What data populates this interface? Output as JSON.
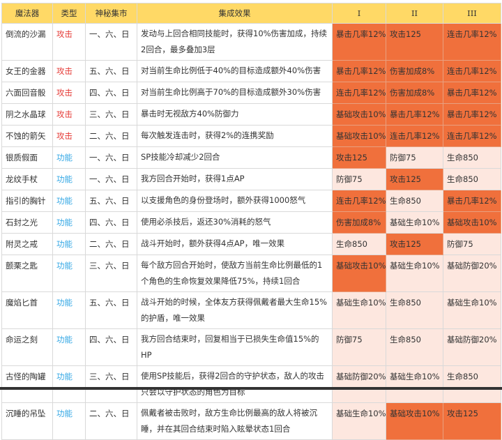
{
  "colors": {
    "header": "#FFD966",
    "highlight": "#F0703C",
    "light": "#FDE7DF",
    "attack": "#E53935",
    "function": "#35A8E5"
  },
  "headers": [
    "魔法器",
    "类型",
    "神秘集市",
    "集成效果",
    "I",
    "II",
    "III"
  ],
  "rows": [
    {
      "name": "倒流的沙漏",
      "type": "攻击",
      "market": "一、六、日",
      "effect": "发动与上回合相同技能时，获得10%伤害加成，持续2回合，最多叠加3层",
      "stats": [
        "暴击几率12%",
        "攻击125",
        "连击几率12%"
      ],
      "hl": [
        "h",
        "h",
        "h"
      ]
    },
    {
      "name": "女王的金器",
      "type": "攻击",
      "market": "五、六、日",
      "effect": "对当前生命比例低于40%的目标造成额外40%伤害",
      "stats": [
        "暴击几率12%",
        "伤害加成8%",
        "连击几率12%"
      ],
      "hl": [
        "h",
        "h",
        "h"
      ]
    },
    {
      "name": "六面回音骰",
      "type": "攻击",
      "market": "四、六、日",
      "effect": "对当前生命比例高于70%的目标造成额外30%伤害",
      "stats": [
        "连击几率12%",
        "伤害加成8%",
        "暴击几率12%"
      ],
      "hl": [
        "h",
        "h",
        "h"
      ]
    },
    {
      "name": "阴之水晶球",
      "type": "攻击",
      "market": "三、六、日",
      "effect": "暴击时无视敌方40%防御力",
      "stats": [
        "基础攻击10%",
        "暴击几率12%",
        "暴击几率12%"
      ],
      "hl": [
        "h",
        "h",
        "h"
      ]
    },
    {
      "name": "不蚀的箭矢",
      "type": "攻击",
      "market": "二、六、日",
      "effect": "每次触发连击时，获得2%的连携奖励",
      "stats": [
        "基础攻击10%",
        "连击几率12%",
        "连击几率12%"
      ],
      "hl": [
        "h",
        "h",
        "h"
      ]
    },
    {
      "name": "银质假面",
      "type": "功能",
      "market": "一、六、日",
      "effect": "SP技能冷却减少2回合",
      "stats": [
        "攻击125",
        "防御75",
        "生命850"
      ],
      "hl": [
        "h",
        "l",
        "l"
      ]
    },
    {
      "name": "龙纹手杖",
      "type": "功能",
      "market": "一、六、日",
      "effect": "我方回合开始时，获得1点AP",
      "stats": [
        "防御75",
        "攻击125",
        "生命850"
      ],
      "hl": [
        "l",
        "h",
        "l"
      ]
    },
    {
      "name": "指引的胸针",
      "type": "功能",
      "market": "五、六、日",
      "effect": "以支援角色的身份登场时，额外获得1000怒气",
      "stats": [
        "连击几率12%",
        "生命850",
        "暴击几率12%"
      ],
      "hl": [
        "h",
        "l",
        "h"
      ]
    },
    {
      "name": "石封之光",
      "type": "功能",
      "market": "四、六、日",
      "effect": "使用必杀技后，返还30%消耗的怒气",
      "stats": [
        "伤害加成8%",
        "基础生命10%",
        "基础攻击10%"
      ],
      "hl": [
        "h",
        "l",
        "h"
      ]
    },
    {
      "name": "附灵之戒",
      "type": "功能",
      "market": "二、六、日",
      "effect": "战斗开始时，额外获得4点AP，唯一效果",
      "stats": [
        "生命850",
        "攻击125",
        "防御75"
      ],
      "hl": [
        "l",
        "h",
        "l"
      ]
    },
    {
      "name": "颤栗之匙",
      "type": "功能",
      "market": "三、六、日",
      "effect": "每个敌方回合开始时，使敌方当前生命比例最低的1个角色的生命恢复效果降低75%，持续1回合",
      "stats": [
        "基础攻击10%",
        "基础生命10%",
        "基础防御20%"
      ],
      "hl": [
        "h",
        "l",
        "l"
      ]
    },
    {
      "name": "魔焰匕首",
      "type": "功能",
      "market": "五、六、日",
      "effect": "战斗开始的时候，全体友方获得佩戴者最大生命15%的护盾，唯一效果",
      "stats": [
        "基础生命10%",
        "生命850",
        "基础生命10%"
      ],
      "hl": [
        "l",
        "l",
        "l"
      ]
    },
    {
      "name": "命运之刻",
      "type": "功能",
      "market": "四、六、日",
      "effect": "我方回合结束时，回复相当于已损失生命值15%的HP",
      "stats": [
        "防御75",
        "生命850",
        "基础防御20%"
      ],
      "hl": [
        "l",
        "l",
        "l"
      ]
    },
    {
      "name": "古怪的陶罐",
      "type": "功能",
      "market": "三、六、日",
      "effect": "使用SP技能后，获得2回合的守护状态，敌人的攻击只会以守护状态的角色为目标",
      "stats": [
        "基础防御20%",
        "基础生命10%",
        "生命850"
      ],
      "hl": [
        "l",
        "l",
        "l"
      ]
    },
    {
      "name": "沉睡的吊坠",
      "type": "功能",
      "market": "二、六、日",
      "effect": "佩戴者被击败时，敌方生命比例最高的敌人将被沉睡，并在其回合结束时陷入眩晕状态1回合",
      "stats": [
        "基础生命10%",
        "基础攻击10%",
        "攻击125"
      ],
      "hl": [
        "l",
        "h",
        "h"
      ]
    }
  ]
}
